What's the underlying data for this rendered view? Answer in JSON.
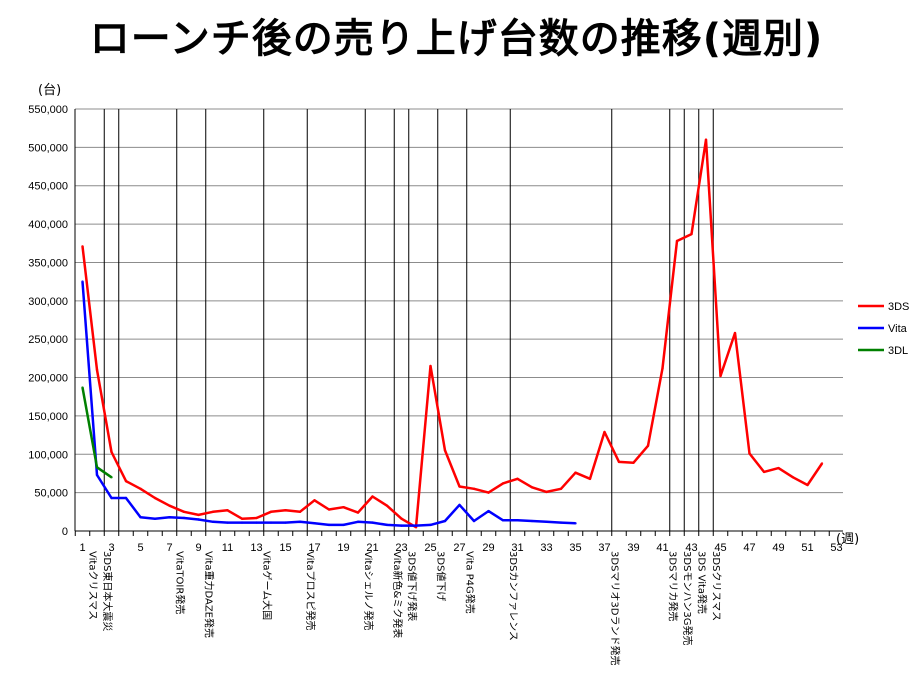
{
  "title": "ローンチ後の売り上げ台数の推移(週別)",
  "chart_data": {
    "type": "line",
    "title": "ローンチ後の売り上げ台数の推移(週別)",
    "xlabel": "(週)",
    "ylabel": "(台)",
    "xlim": [
      1,
      53
    ],
    "ylim": [
      0,
      550000
    ],
    "y_ticks": [
      0,
      50000,
      100000,
      150000,
      200000,
      250000,
      300000,
      350000,
      400000,
      450000,
      500000,
      550000
    ],
    "y_tick_labels": [
      "0",
      "50,000",
      "100,000",
      "150,000",
      "200,000",
      "250,000",
      "300,000",
      "350,000",
      "400,000",
      "450,000",
      "500,000",
      "550,000"
    ],
    "x_ticks": [
      1,
      3,
      5,
      7,
      9,
      11,
      13,
      15,
      17,
      19,
      21,
      23,
      25,
      27,
      29,
      31,
      33,
      35,
      37,
      39,
      41,
      43,
      45,
      47,
      49,
      51,
      53
    ],
    "grid": true,
    "legend_position": "right",
    "series": [
      {
        "name": "3DS",
        "color": "#ff0000",
        "x": [
          1,
          2,
          3,
          4,
          5,
          6,
          7,
          8,
          9,
          10,
          11,
          12,
          13,
          14,
          15,
          16,
          17,
          18,
          19,
          20,
          21,
          22,
          23,
          24,
          25,
          26,
          27,
          28,
          29,
          30,
          31,
          32,
          33,
          34,
          35,
          36,
          37,
          38,
          39,
          40,
          41,
          42,
          43,
          44,
          45,
          46,
          47,
          48,
          49,
          50,
          51,
          52
        ],
        "values": [
          371000,
          210000,
          103000,
          65000,
          55000,
          43000,
          33000,
          25000,
          21000,
          25000,
          27000,
          16000,
          17000,
          25000,
          27000,
          25000,
          40000,
          28000,
          31000,
          24000,
          45000,
          33000,
          16000,
          5000,
          215000,
          105000,
          58000,
          55000,
          50000,
          62000,
          68000,
          57000,
          51000,
          55000,
          76000,
          68000,
          129000,
          90000,
          89000,
          111000,
          212000,
          378000,
          387000,
          510000,
          202000,
          258000,
          101000,
          77000,
          82000,
          70000,
          60000,
          88000
        ]
      },
      {
        "name": "Vita",
        "color": "#0000ff",
        "x": [
          1,
          2,
          3,
          4,
          5,
          6,
          7,
          8,
          9,
          10,
          11,
          12,
          13,
          14,
          15,
          16,
          17,
          18,
          19,
          20,
          21,
          22,
          23,
          24,
          25,
          26,
          27,
          28,
          29,
          30,
          31,
          32,
          33,
          34,
          35
        ],
        "values": [
          325000,
          73000,
          43000,
          43000,
          18000,
          16000,
          18000,
          17000,
          15000,
          12000,
          11000,
          11000,
          11000,
          11000,
          11000,
          12000,
          10000,
          8000,
          8000,
          12000,
          11000,
          8000,
          7000,
          7000,
          8000,
          13000,
          34000,
          13000,
          26000,
          14000,
          14000,
          13000,
          12000,
          11000,
          10000
        ]
      },
      {
        "name": "3DL",
        "color": "#008000",
        "x": [
          1,
          2,
          3
        ],
        "values": [
          187000,
          83000,
          70000
        ]
      }
    ],
    "events": [
      {
        "x": 1,
        "label": "Vitaクリスマス"
      },
      {
        "x": 2,
        "label": "3DS東日本大震災"
      },
      {
        "x": 3,
        "label": ""
      },
      {
        "x": 7,
        "label": "VitaTOIR発売"
      },
      {
        "x": 9,
        "label": "Vita重力DAZE発売"
      },
      {
        "x": 13,
        "label": "Vitaゲーム大国"
      },
      {
        "x": 16,
        "label": "Vitaプロスピ発売"
      },
      {
        "x": 20,
        "label": "Vitaシェルノ発売"
      },
      {
        "x": 22,
        "label": "Vita新色&ミク発表"
      },
      {
        "x": 23,
        "label": "3DS値下げ発表"
      },
      {
        "x": 25,
        "label": "3DS値下げ"
      },
      {
        "x": 27,
        "label": "Vita P4G発売"
      },
      {
        "x": 30,
        "label": "3DSカンファレンス"
      },
      {
        "x": 37,
        "label": "3DSマリオ3Dランド発売"
      },
      {
        "x": 41,
        "label": "3DSマリカ発売"
      },
      {
        "x": 42,
        "label": "3DSモンハン3G発売"
      },
      {
        "x": 43,
        "label": "3DS Vita発売"
      },
      {
        "x": 44,
        "label": "3DSクリスマス"
      }
    ]
  }
}
